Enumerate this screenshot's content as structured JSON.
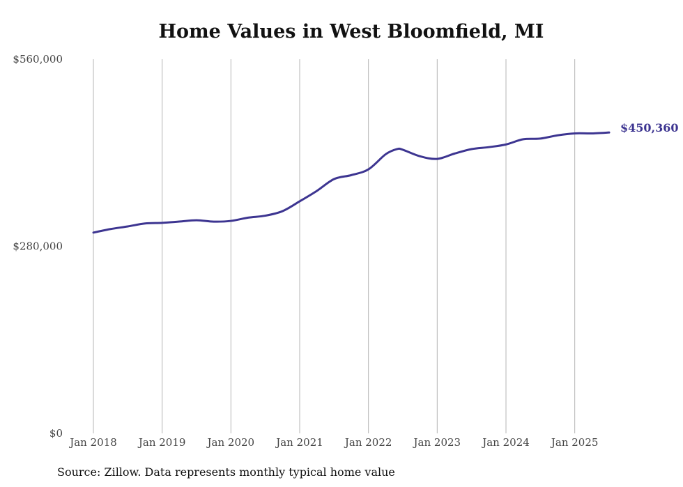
{
  "chart_data": {
    "type": "line",
    "title": "Home Values in West Bloomfield, MI",
    "source_note": "Source: Zillow. Data represents monthly typical home value",
    "xlabel": "",
    "ylabel": "",
    "y_range": [
      0,
      560000
    ],
    "y_ticks": [
      {
        "value": 0,
        "label": "$0"
      },
      {
        "value": 280000,
        "label": "$280,000"
      },
      {
        "value": 560000,
        "label": "$560,000"
      }
    ],
    "x_range": [
      "2018-01",
      "2025-07"
    ],
    "x_ticks": [
      {
        "value": "2018-01",
        "label": "Jan 2018"
      },
      {
        "value": "2019-01",
        "label": "Jan 2019"
      },
      {
        "value": "2020-01",
        "label": "Jan 2020"
      },
      {
        "value": "2021-01",
        "label": "Jan 2021"
      },
      {
        "value": "2022-01",
        "label": "Jan 2022"
      },
      {
        "value": "2023-01",
        "label": "Jan 2023"
      },
      {
        "value": "2024-01",
        "label": "Jan 2024"
      },
      {
        "value": "2025-01",
        "label": "Jan 2025"
      }
    ],
    "vertical_gridlines": true,
    "horizontal_gridlines": false,
    "series": [
      {
        "color": "#3d3591",
        "end_label": "$450,360",
        "points": [
          {
            "x": "2018-01",
            "y": 300500
          },
          {
            "x": "2018-04",
            "y": 305800
          },
          {
            "x": "2018-07",
            "y": 309700
          },
          {
            "x": "2018-10",
            "y": 314100
          },
          {
            "x": "2019-01",
            "y": 315100
          },
          {
            "x": "2019-04",
            "y": 317000
          },
          {
            "x": "2019-07",
            "y": 319000
          },
          {
            "x": "2019-10",
            "y": 316900
          },
          {
            "x": "2020-01",
            "y": 318000
          },
          {
            "x": "2020-04",
            "y": 322900
          },
          {
            "x": "2020-07",
            "y": 325800
          },
          {
            "x": "2020-10",
            "y": 332600
          },
          {
            "x": "2021-01",
            "y": 347300
          },
          {
            "x": "2021-04",
            "y": 362900
          },
          {
            "x": "2021-07",
            "y": 380600
          },
          {
            "x": "2021-10",
            "y": 386500
          },
          {
            "x": "2022-01",
            "y": 395200
          },
          {
            "x": "2022-04",
            "y": 417700
          },
          {
            "x": "2022-06",
            "y": 425500
          },
          {
            "x": "2022-07",
            "y": 424500
          },
          {
            "x": "2022-10",
            "y": 414700
          },
          {
            "x": "2023-01",
            "y": 410800
          },
          {
            "x": "2023-04",
            "y": 418700
          },
          {
            "x": "2023-07",
            "y": 425500
          },
          {
            "x": "2023-10",
            "y": 428400
          },
          {
            "x": "2024-01",
            "y": 432400
          },
          {
            "x": "2024-04",
            "y": 440200
          },
          {
            "x": "2024-07",
            "y": 441200
          },
          {
            "x": "2024-10",
            "y": 446100
          },
          {
            "x": "2025-01",
            "y": 449000
          },
          {
            "x": "2025-04",
            "y": 449000
          },
          {
            "x": "2025-07",
            "y": 450360
          }
        ]
      }
    ]
  }
}
